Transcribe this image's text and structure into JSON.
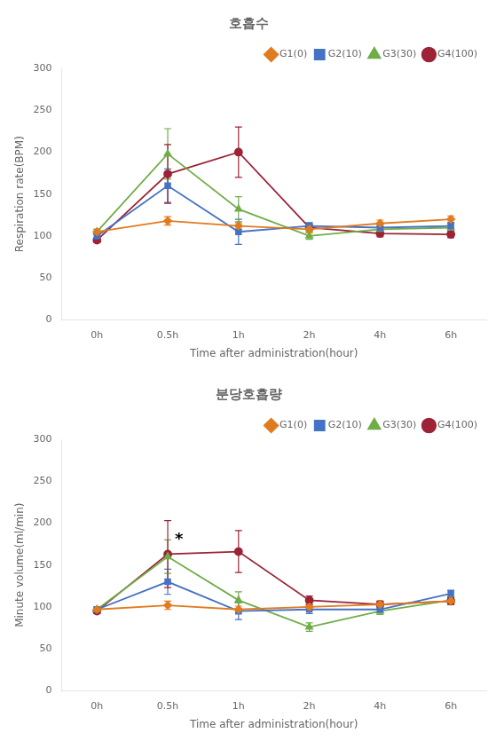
{
  "chart_data": [
    {
      "type": "line",
      "title": "호흡수",
      "x_label": "Time after administration(hour)",
      "y_label": "Respiration rate(BPM)",
      "categories": [
        "0h",
        "0.5h",
        "1h",
        "2h",
        "4h",
        "6h"
      ],
      "ylim": [
        0,
        300
      ],
      "yticks": [
        0,
        50,
        100,
        150,
        200,
        250,
        300
      ],
      "grid": false,
      "legend": "upper right",
      "series": [
        {
          "name": "G1(0)",
          "color": "#E07B20",
          "marker": "diamond",
          "values": [
            105,
            118,
            112,
            108,
            115,
            120
          ],
          "yerr": [
            3,
            5,
            4,
            4,
            4,
            4
          ]
        },
        {
          "name": "G2(10)",
          "color": "#4472C4",
          "marker": "square",
          "values": [
            100,
            160,
            105,
            112,
            110,
            112
          ],
          "yerr": [
            3,
            20,
            15,
            4,
            4,
            4
          ]
        },
        {
          "name": "G3(30)",
          "color": "#70AD47",
          "marker": "triangle",
          "values": [
            105,
            198,
            132,
            100,
            108,
            110
          ],
          "yerr": [
            3,
            30,
            15,
            4,
            4,
            4
          ]
        },
        {
          "name": "G4(100)",
          "color": "#9B2335",
          "marker": "circle",
          "values": [
            95,
            174,
            200,
            110,
            103,
            102
          ],
          "yerr": [
            3,
            35,
            30,
            4,
            4,
            4
          ]
        }
      ]
    },
    {
      "type": "line",
      "title": "분당호흡량",
      "x_label": "Time after administration(hour)",
      "y_label": "Minute volume(ml/min)",
      "categories": [
        "0h",
        "0.5h",
        "1h",
        "2h",
        "4h",
        "6h"
      ],
      "ylim": [
        0,
        300
      ],
      "yticks": [
        0,
        50,
        100,
        150,
        200,
        250,
        300
      ],
      "grid": false,
      "legend": "upper right",
      "annotations": [
        {
          "text": "*",
          "x": "0.5h",
          "y": 175
        }
      ],
      "series": [
        {
          "name": "G1(0)",
          "color": "#E07B20",
          "marker": "diamond",
          "values": [
            97,
            102,
            97,
            100,
            103,
            107
          ],
          "yerr": [
            3,
            5,
            4,
            4,
            4,
            4
          ]
        },
        {
          "name": "G2(10)",
          "color": "#4472C4",
          "marker": "square",
          "values": [
            97,
            130,
            95,
            97,
            97,
            116
          ],
          "yerr": [
            3,
            15,
            10,
            5,
            4,
            4
          ]
        },
        {
          "name": "G3(30)",
          "color": "#70AD47",
          "marker": "triangle",
          "values": [
            97,
            160,
            108,
            76,
            95,
            108
          ],
          "yerr": [
            3,
            20,
            10,
            5,
            4,
            4
          ]
        },
        {
          "name": "G4(100)",
          "color": "#9B2335",
          "marker": "circle",
          "values": [
            95,
            163,
            166,
            108,
            103,
            107
          ],
          "yerr": [
            3,
            40,
            25,
            5,
            4,
            4
          ]
        }
      ]
    }
  ]
}
